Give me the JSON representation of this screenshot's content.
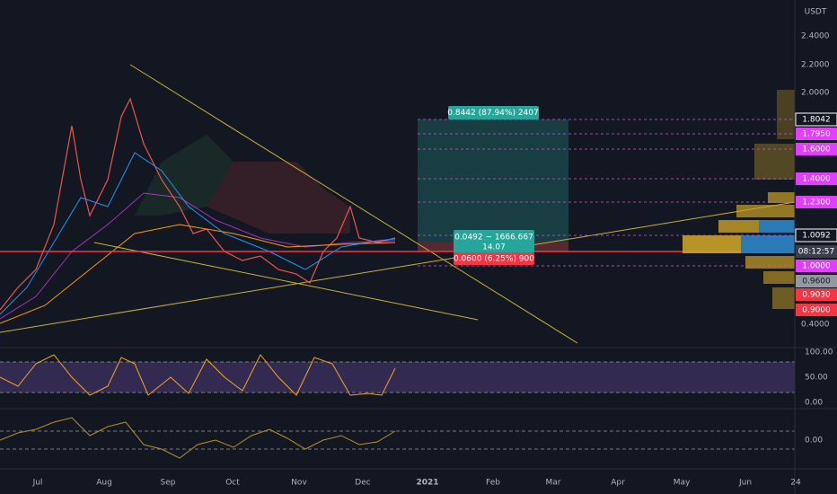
{
  "price_axis": {
    "unit": "USDT",
    "labels": [
      "2.4000",
      "2.2000",
      "2.0000",
      "0.4000"
    ]
  },
  "price_tags": [
    "1.8042",
    "1.7950",
    "1.6000",
    "1.4000",
    "1.2300",
    "1.0092",
    "08:12:57",
    "1.0000",
    "0.9600",
    "0.9030",
    "0.9000"
  ],
  "time_axis": [
    "Jul",
    "Aug",
    "Sep",
    "Oct",
    "Nov",
    "Dec",
    "2021",
    "Feb",
    "Mar",
    "Apr",
    "May",
    "Jun",
    "24"
  ],
  "position_tool": {
    "target": "0.8442 (87.94%) 2407",
    "ratio": "0.0492 ~ 1666.667",
    "qty": "14.07",
    "stop": "0.0600 (6.25%) 900"
  },
  "rsi_axis": [
    "100.00",
    "50.00",
    "0.00"
  ],
  "osc_axis": [
    "0.00"
  ]
}
